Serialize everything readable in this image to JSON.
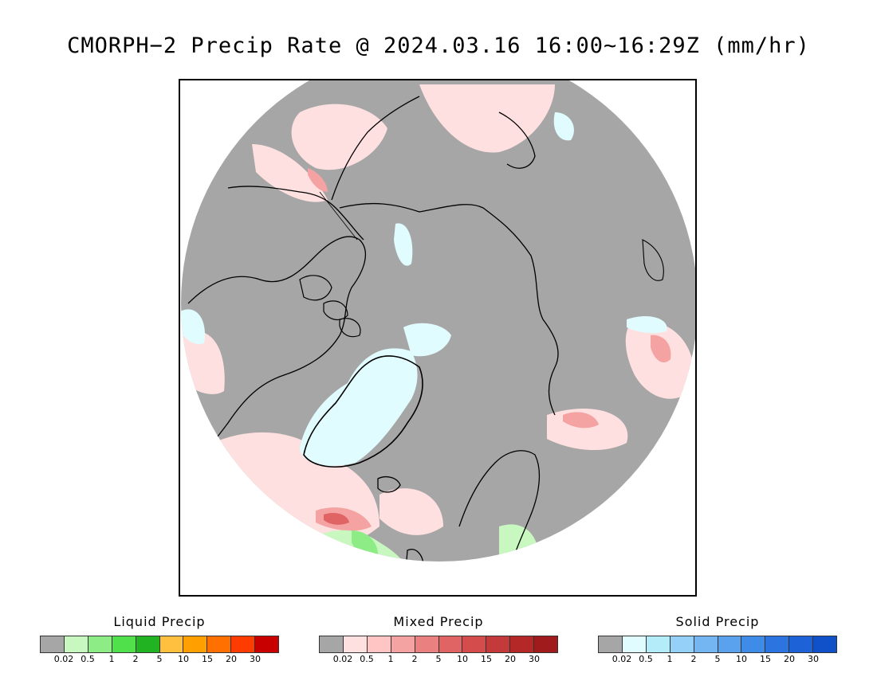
{
  "title": "CMORPH−2 Precip Rate @ 2024.03.16 16:00~16:29Z (mm/hr)",
  "map": {
    "projection": "north-polar-stereographic",
    "ocean_color": "#a6a6a6",
    "coastline_color": "#000000"
  },
  "legends": [
    {
      "id": "liquid",
      "title": "Liquid Precip",
      "colors": [
        "#a6a6a6",
        "#c8f7c0",
        "#8eec87",
        "#50e04c",
        "#22b322",
        "#ffc040",
        "#ffa000",
        "#ff7000",
        "#ff3c00",
        "#c80000"
      ],
      "ticks": [
        "0.02",
        "0.5",
        "1",
        "2",
        "5",
        "10",
        "15",
        "20",
        "30"
      ]
    },
    {
      "id": "mixed",
      "title": "Mixed Precip",
      "colors": [
        "#a6a6a6",
        "#ffe0e0",
        "#ffc4c4",
        "#f4a2a2",
        "#ea8080",
        "#e06464",
        "#d44c4c",
        "#c43a3a",
        "#b42828",
        "#a01c1c"
      ],
      "ticks": [
        "0.02",
        "0.5",
        "1",
        "2",
        "5",
        "10",
        "15",
        "20",
        "30"
      ]
    },
    {
      "id": "solid",
      "title": "Solid Precip",
      "colors": [
        "#a6a6a6",
        "#e0fcff",
        "#b4ecfa",
        "#94d0f8",
        "#74b6f2",
        "#5aa2ee",
        "#3e8ce8",
        "#2c74e0",
        "#1e62d8",
        "#1050c8"
      ],
      "ticks": [
        "0.02",
        "0.5",
        "1",
        "2",
        "5",
        "10",
        "15",
        "20",
        "30"
      ]
    }
  ]
}
